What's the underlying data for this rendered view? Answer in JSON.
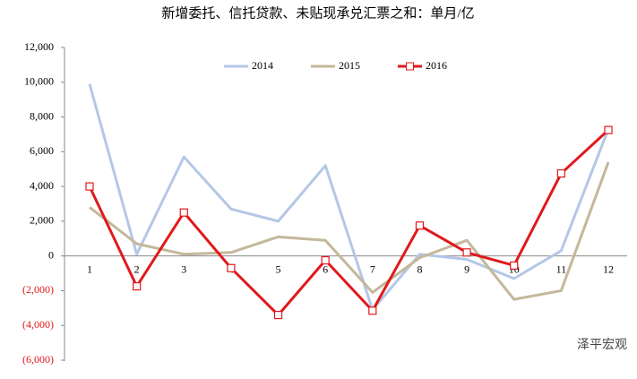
{
  "chart_data": {
    "type": "line",
    "title": "新增委托、信托贷款、未贴现承兑汇票之和：单月/亿",
    "watermark": "泽平宏观",
    "categories": [
      "1",
      "2",
      "3",
      "4",
      "5",
      "6",
      "7",
      "8",
      "9",
      "10",
      "11",
      "12"
    ],
    "series": [
      {
        "name": "2014",
        "color": "#b4c7e7",
        "marker": false,
        "values": [
          9900,
          100,
          5700,
          2700,
          2000,
          5200,
          -3100,
          100,
          -200,
          -1300,
          300,
          7300
        ]
      },
      {
        "name": "2015",
        "color": "#c4b89a",
        "marker": false,
        "values": [
          2800,
          700,
          100,
          200,
          1100,
          900,
          -2100,
          -100,
          900,
          -2500,
          -2000,
          5400
        ]
      },
      {
        "name": "2016",
        "color": "#e0191c",
        "marker": true,
        "values": [
          4000,
          -1750,
          2500,
          -700,
          -3400,
          -250,
          -3150,
          1750,
          200,
          -550,
          4750,
          7250
        ]
      }
    ],
    "ylim": [
      -6000,
      12000
    ],
    "yticks": [
      {
        "value": 12000,
        "label": "12,000"
      },
      {
        "value": 10000,
        "label": "10,000"
      },
      {
        "value": 8000,
        "label": "8,000"
      },
      {
        "value": 6000,
        "label": "6,000"
      },
      {
        "value": 4000,
        "label": "4,000"
      },
      {
        "value": 2000,
        "label": "2,000"
      },
      0,
      {
        "value": -2000,
        "label": "(2,000)"
      },
      {
        "value": -4000,
        "label": "(4,000)"
      },
      {
        "value": -6000,
        "label": "(6,000)"
      }
    ],
    "negative_tick_color": "#e0191c",
    "grid": false
  }
}
